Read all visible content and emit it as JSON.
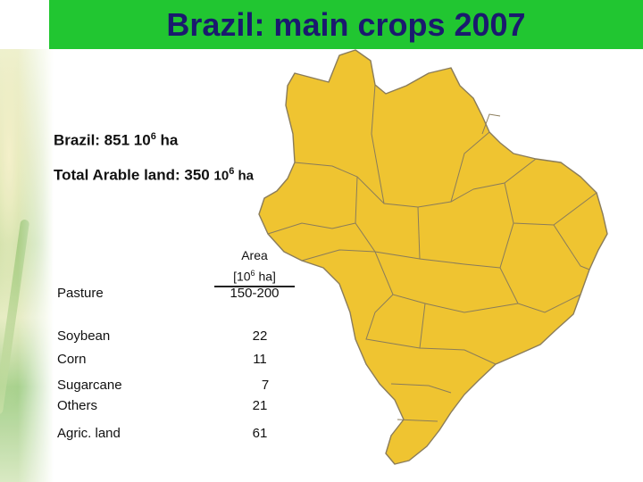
{
  "title": "Brazil: main crops 2007",
  "stats": {
    "area_prefix": "Brazil: 851 10",
    "area_exp": "6",
    "area_unit": " ha",
    "arable_prefix": "Total Arable land: 350 ",
    "arable_base": "10",
    "arable_exp": "6",
    "arable_unit": " ha"
  },
  "table": {
    "header_line1": "Area",
    "header_line2_prefix": "[10",
    "header_line2_exp": "6",
    "header_line2_suffix": " ha]",
    "rows": [
      {
        "label": "Pasture",
        "value": "150-200"
      },
      {
        "label": "Soybean",
        "value": "22"
      },
      {
        "label": "Corn",
        "value": "11"
      },
      {
        "label": "Sugarcane",
        "value": "7"
      },
      {
        "label": "Others",
        "value": "21"
      },
      {
        "label": "Agric. land",
        "value": "61"
      }
    ]
  },
  "colors": {
    "map_fill": "#efc431",
    "map_stroke": "#8a7c5a",
    "title_bar": "#21c631",
    "title_text": "#1a1a6e"
  }
}
